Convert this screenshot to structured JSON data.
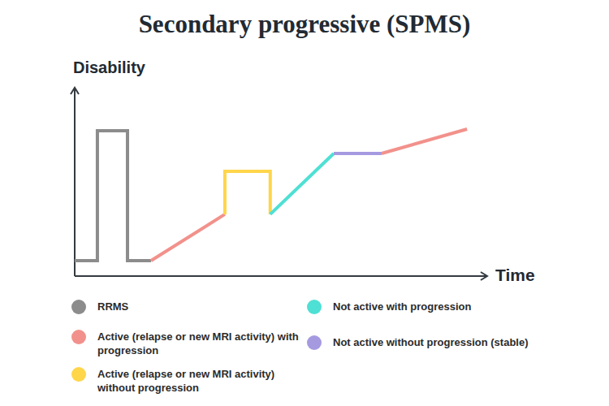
{
  "chart_data": {
    "type": "line",
    "title": "Secondary progressive (SPMS)",
    "x_label": "Time",
    "y_label": "Disability",
    "xlim": [
      0,
      100
    ],
    "ylim": [
      0,
      100
    ],
    "tick_labels": false,
    "grid": false,
    "legend": "bottom",
    "series": [
      {
        "name": "RRMS",
        "color": "#8c8c8c",
        "x": [
          0,
          5.5,
          5.5,
          12.8,
          12.8,
          18.5
        ],
        "values": [
          8.2,
          8.2,
          77.2,
          77.2,
          8.2,
          8.2
        ]
      },
      {
        "name": "Active (relapse or new MRI activity) with progression",
        "color": "#f2918b",
        "x": [
          18.5,
          36.4,
          null,
          74.4,
          95.1
        ],
        "values": [
          8.2,
          32.8,
          null,
          65.1,
          78.0
        ]
      },
      {
        "name": "Active (relapse or new MRI activity) without progression",
        "color": "#ffd54a",
        "x": [
          36.4,
          36.4,
          47.4,
          47.4
        ],
        "values": [
          32.8,
          55.6,
          55.6,
          32.8
        ]
      },
      {
        "name": "Not active with progression",
        "color": "#4ee0d4",
        "x": [
          47.4,
          62.8
        ],
        "values": [
          32.8,
          65.1
        ]
      },
      {
        "name": "Not active without progression (stable)",
        "color": "#a59ae0",
        "x": [
          62.8,
          74.4
        ],
        "values": [
          65.1,
          65.1
        ]
      }
    ]
  }
}
